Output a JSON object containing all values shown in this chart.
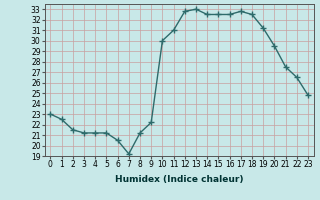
{
  "x": [
    0,
    1,
    2,
    3,
    4,
    5,
    6,
    7,
    8,
    9,
    10,
    11,
    12,
    13,
    14,
    15,
    16,
    17,
    18,
    19,
    20,
    21,
    22,
    23
  ],
  "y": [
    23.0,
    22.5,
    21.5,
    21.2,
    21.2,
    21.2,
    20.5,
    19.2,
    21.2,
    22.2,
    30.0,
    31.0,
    32.8,
    33.0,
    32.5,
    32.5,
    32.5,
    32.8,
    32.5,
    31.2,
    29.5,
    27.5,
    26.5,
    24.8
  ],
  "line_color": "#2e6b6b",
  "marker": "+",
  "marker_size": 4,
  "bg_color": "#c8e8e8",
  "grid_color": "#c8a0a0",
  "xlabel": "Humidex (Indice chaleur)",
  "xlim": [
    -0.5,
    23.5
  ],
  "ylim": [
    19,
    33.5
  ],
  "yticks": [
    19,
    20,
    21,
    22,
    23,
    24,
    25,
    26,
    27,
    28,
    29,
    30,
    31,
    32,
    33
  ],
  "xticks": [
    0,
    1,
    2,
    3,
    4,
    5,
    6,
    7,
    8,
    9,
    10,
    11,
    12,
    13,
    14,
    15,
    16,
    17,
    18,
    19,
    20,
    21,
    22,
    23
  ],
  "tick_fontsize": 5.5,
  "xlabel_fontsize": 6.5,
  "xlabel_color": "#003333",
  "linewidth": 1.0,
  "spine_color": "#555555"
}
